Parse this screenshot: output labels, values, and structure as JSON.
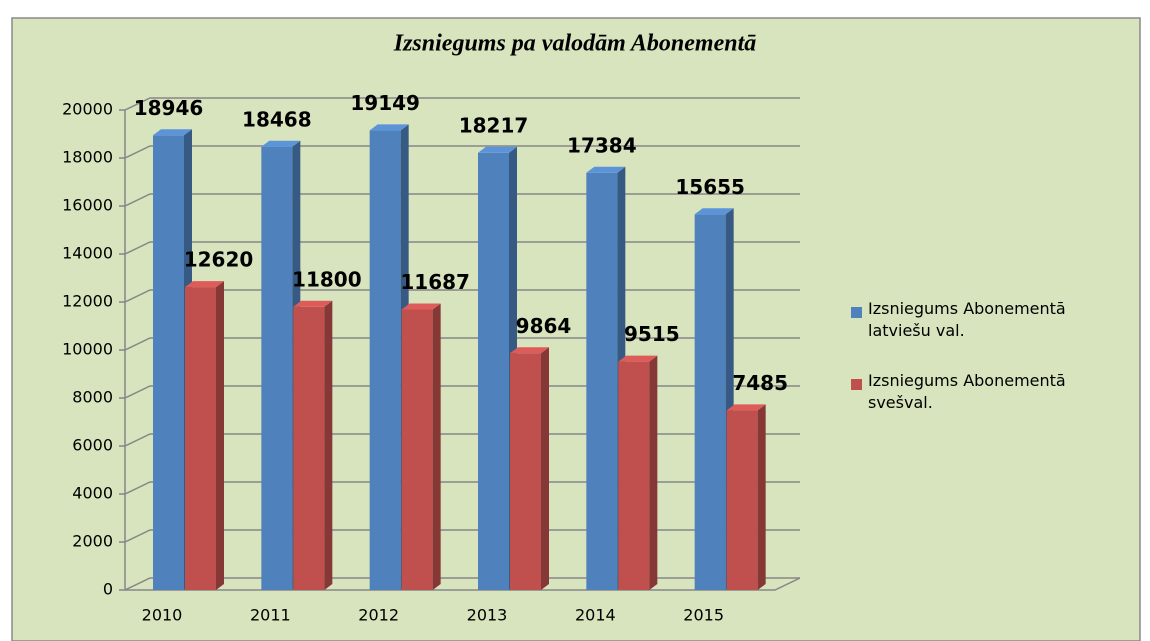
{
  "chart_data": {
    "type": "bar3d",
    "title": "Izsniegums pa valodām Abonementā",
    "categories": [
      "2010",
      "2011",
      "2012",
      "2013",
      "2014",
      "2015"
    ],
    "series": [
      {
        "name": "Izsniegums Abonementā latviešu val.",
        "color": "#4f81bd",
        "values": [
          18946,
          18468,
          19149,
          18217,
          17384,
          15655
        ]
      },
      {
        "name": "Izsniegums Abonementā svešval.",
        "color": "#c0504d",
        "values": [
          12620,
          11800,
          11687,
          9864,
          9515,
          7485
        ]
      }
    ],
    "ylim": [
      0,
      20000
    ],
    "yticks": [
      0,
      2000,
      4000,
      6000,
      8000,
      10000,
      12000,
      14000,
      16000,
      18000,
      20000
    ],
    "grid": true,
    "legend": "right"
  }
}
